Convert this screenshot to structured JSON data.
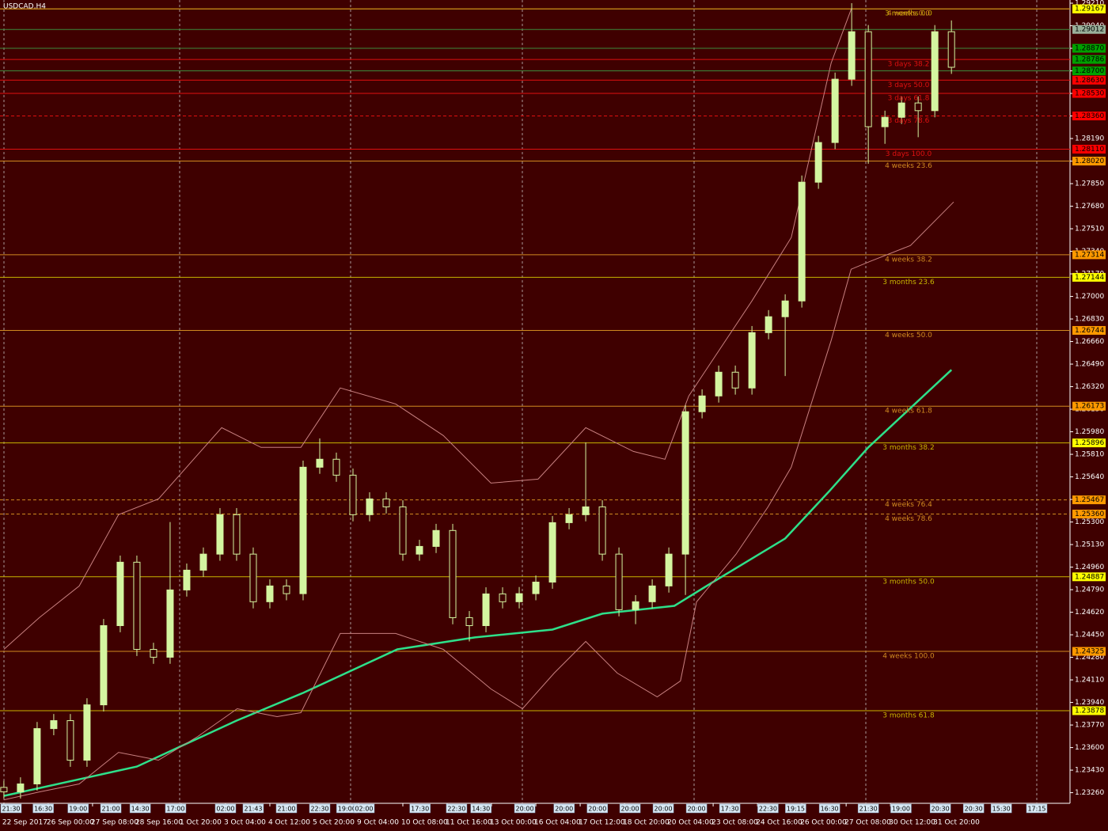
{
  "chart_data": {
    "type": "candlestick",
    "title": "USDCAD,H4",
    "background": "#3f0000",
    "bull_color": "#d4f5a0",
    "bear_color": "#3f0000",
    "x": [
      0,
      3,
      6,
      9,
      12,
      15,
      18,
      21,
      24,
      27,
      30,
      33,
      36,
      39,
      42,
      45,
      48,
      51,
      54,
      57,
      60,
      63,
      66,
      69,
      72,
      75,
      78,
      81,
      84,
      87,
      90,
      93,
      96,
      99,
      102,
      105,
      108,
      111,
      114,
      117,
      120,
      123,
      126,
      129,
      132,
      135,
      138,
      141,
      144,
      147,
      150,
      153,
      156,
      159,
      162,
      165,
      168,
      171
    ],
    "open": [
      1.233,
      1.23266,
      1.23326,
      1.23743,
      1.23803,
      1.23505,
      1.23922,
      1.24519,
      1.24997,
      1.2434,
      1.24281,
      1.24788,
      1.24937,
      1.25058,
      1.25355,
      1.25058,
      1.24699,
      1.24818,
      1.2476,
      1.25713,
      1.25773,
      1.25653,
      1.25355,
      1.25474,
      1.25414,
      1.25058,
      1.25116,
      1.25236,
      1.24579,
      1.24519,
      1.24758,
      1.24699,
      1.2476,
      1.24847,
      1.25295,
      1.25355,
      1.25414,
      1.25058,
      1.24639,
      1.24699,
      1.24818,
      1.25058,
      1.26131,
      1.2625,
      1.26429,
      1.2631,
      1.26727,
      1.26847,
      1.26966,
      1.27861,
      1.2816,
      1.28637,
      1.28995,
      1.28279,
      1.2835,
      1.28458,
      1.284,
      1.28995
    ],
    "high": [
      1.2335,
      1.23376,
      1.23793,
      1.23853,
      1.23853,
      1.23972,
      1.24569,
      1.25047,
      1.25047,
      1.2439,
      1.253,
      1.24987,
      1.25108,
      1.25405,
      1.25405,
      1.25108,
      1.24868,
      1.24868,
      1.25763,
      1.2593,
      1.25823,
      1.25703,
      1.25524,
      1.25524,
      1.25464,
      1.25166,
      1.25286,
      1.25286,
      1.24629,
      1.24808,
      1.24808,
      1.2481,
      1.24897,
      1.25345,
      1.25405,
      1.259,
      1.25464,
      1.25108,
      1.24749,
      1.24868,
      1.25108,
      1.26181,
      1.263,
      1.26479,
      1.26479,
      1.26777,
      1.26897,
      1.27016,
      1.27911,
      1.2821,
      1.28687,
      1.2921,
      1.29045,
      1.284,
      1.28508,
      1.28508,
      1.29045,
      1.2908
    ],
    "low": [
      1.23216,
      1.23216,
      1.23276,
      1.23693,
      1.23455,
      1.23455,
      1.23872,
      1.24469,
      1.2429,
      1.24231,
      1.24231,
      1.24738,
      1.24887,
      1.25008,
      1.25008,
      1.24649,
      1.24649,
      1.2471,
      1.2471,
      1.25663,
      1.25603,
      1.25305,
      1.25305,
      1.25364,
      1.25008,
      1.25008,
      1.25066,
      1.24529,
      1.244,
      1.24469,
      1.24649,
      1.24649,
      1.2471,
      1.24797,
      1.25245,
      1.25305,
      1.25008,
      1.24589,
      1.2453,
      1.24649,
      1.24768,
      1.2475,
      1.26081,
      1.262,
      1.2626,
      1.2626,
      1.26677,
      1.264,
      1.26916,
      1.27811,
      1.2811,
      1.28587,
      1.28,
      1.2815,
      1.283,
      1.282,
      1.2835,
      1.28677
    ],
    "close": [
      1.23266,
      1.23326,
      1.23743,
      1.23803,
      1.23505,
      1.23922,
      1.24519,
      1.24997,
      1.2434,
      1.24281,
      1.24788,
      1.24937,
      1.25058,
      1.25355,
      1.25058,
      1.24699,
      1.24818,
      1.2476,
      1.25713,
      1.25773,
      1.25653,
      1.25355,
      1.25474,
      1.25414,
      1.25058,
      1.25116,
      1.25236,
      1.24579,
      1.24519,
      1.24758,
      1.24699,
      1.2476,
      1.24847,
      1.25295,
      1.25355,
      1.25414,
      1.25058,
      1.24639,
      1.24699,
      1.24818,
      1.25058,
      1.26131,
      1.2625,
      1.26429,
      1.2631,
      1.26727,
      1.26847,
      1.26966,
      1.27861,
      1.2816,
      1.28637,
      1.28995,
      1.28279,
      1.2835,
      1.28458,
      1.284,
      1.28995,
      1.28727
    ],
    "xlim": [
      -0.7,
      192.4
    ],
    "ylim": [
      1.2318,
      1.29234
    ],
    "xticks": [
      {
        "value": 0,
        "label": "22 Sep 2017"
      },
      {
        "value": 8,
        "label": "26 Sep 00:00"
      },
      {
        "value": 16,
        "label": "27 Sep 08:00"
      },
      {
        "value": 24,
        "label": "28 Sep 16:00"
      },
      {
        "value": 32,
        "label": "1 Oct 20:00"
      },
      {
        "value": 40,
        "label": "3 Oct 04:00"
      },
      {
        "value": 48,
        "label": "4 Oct 12:00"
      },
      {
        "value": 56,
        "label": "5 Oct 20:00"
      },
      {
        "value": 64,
        "label": "9 Oct 04:00"
      },
      {
        "value": 72,
        "label": "10 Oct 08:00"
      },
      {
        "value": 80,
        "label": "11 Oct 16:00"
      },
      {
        "value": 88,
        "label": "13 Oct 00:00"
      },
      {
        "value": 96,
        "label": "16 Oct 04:00"
      },
      {
        "value": 104,
        "label": "17 Oct 12:00"
      },
      {
        "value": 112,
        "label": "18 Oct 20:00"
      },
      {
        "value": 120,
        "label": "20 Oct 04:00"
      },
      {
        "value": 128,
        "label": "23 Oct 08:00"
      },
      {
        "value": 136,
        "label": "24 Oct 16:00"
      },
      {
        "value": 144,
        "label": "26 Oct 00:00"
      },
      {
        "value": 152,
        "label": "27 Oct 08:00"
      },
      {
        "value": 160,
        "label": "30 Oct 12:00"
      },
      {
        "value": 168,
        "label": "31 Oct 20:00"
      }
    ],
    "yticks": [
      {
        "value": 1.2326,
        "label": "1.23260"
      },
      {
        "value": 1.2343,
        "label": "1.23430"
      },
      {
        "value": 1.236,
        "label": "1.23600"
      },
      {
        "value": 1.2377,
        "label": "1.23770"
      },
      {
        "value": 1.2394,
        "label": "1.23940"
      },
      {
        "value": 1.2411,
        "label": "1.24110"
      },
      {
        "value": 1.2428,
        "label": "1.24280"
      },
      {
        "value": 1.2445,
        "label": "1.24450"
      },
      {
        "value": 1.2462,
        "label": "1.24620"
      },
      {
        "value": 1.2479,
        "label": "1.24790"
      },
      {
        "value": 1.2496,
        "label": "1.24960"
      },
      {
        "value": 1.2513,
        "label": "1.25130"
      },
      {
        "value": 1.253,
        "label": "1.25300"
      },
      {
        "value": 1.2547,
        "label": "1.25470"
      },
      {
        "value": 1.2564,
        "label": "1.25640"
      },
      {
        "value": 1.2581,
        "label": "1.25810"
      },
      {
        "value": 1.2598,
        "label": "1.25980"
      },
      {
        "value": 1.2615,
        "label": "1.26150"
      },
      {
        "value": 1.2632,
        "label": "1.26320"
      },
      {
        "value": 1.2649,
        "label": "1.26490"
      },
      {
        "value": 1.2666,
        "label": "1.26660"
      },
      {
        "value": 1.2683,
        "label": "1.26830"
      },
      {
        "value": 1.27,
        "label": "1.27000"
      },
      {
        "value": 1.2717,
        "label": "1.27170"
      },
      {
        "value": 1.2734,
        "label": "1.27340"
      },
      {
        "value": 1.2751,
        "label": "1.27510"
      },
      {
        "value": 1.2768,
        "label": "1.27680"
      },
      {
        "value": 1.2785,
        "label": "1.27850"
      },
      {
        "value": 1.2802,
        "label": "1.28020"
      },
      {
        "value": 1.2819,
        "label": "1.28190"
      },
      {
        "value": 1.2836,
        "label": "1.28360"
      },
      {
        "value": 1.2853,
        "label": "1.28530"
      },
      {
        "value": 1.287,
        "label": "1.28700"
      },
      {
        "value": 1.2887,
        "label": "1.28870"
      },
      {
        "value": 1.2904,
        "label": "1.29040"
      },
      {
        "value": 1.2921,
        "label": "1.29210"
      }
    ],
    "lines": [
      {
        "color": "#2ee08a",
        "width": 2.5,
        "x": [
          0,
          24,
          42,
          54,
          71,
          85,
          99,
          108,
          121,
          128,
          141,
          149,
          156,
          171
        ],
        "values": [
          1.23236,
          1.23457,
          1.23803,
          1.24012,
          1.2434,
          1.2443,
          1.24489,
          1.24609,
          1.24668,
          1.24848,
          1.25176,
          1.25534,
          1.25862,
          1.26447
        ]
      },
      {
        "color": "#c88080",
        "width": 1,
        "x": [
          0,
          6.4,
          13.6,
          20.7,
          27.9,
          39.3,
          46.4,
          53.6,
          60.7,
          70.7,
          79.3,
          87.9,
          96.4,
          105,
          113.6,
          119.3,
          123.6,
          135,
          142.1,
          149.3,
          153
        ],
        "values": [
          1.2434,
          1.24579,
          1.24818,
          1.25355,
          1.25474,
          1.26011,
          1.25862,
          1.25862,
          1.2631,
          1.2619,
          1.25952,
          1.25593,
          1.25623,
          1.26011,
          1.25832,
          1.25773,
          1.2625,
          1.26966,
          1.27444,
          1.28759,
          1.29174
        ]
      },
      {
        "color": "#c88080",
        "width": 1,
        "x": [
          0,
          6.4,
          13.6,
          20.7,
          27.9,
          35,
          42.1,
          49.3,
          53.6,
          60.7,
          70.7,
          79.3,
          87.9,
          93.6,
          99.3,
          105,
          110.7,
          117.9,
          122.1,
          125,
          132.1,
          137.9,
          142.1,
          149.3,
          152.9,
          156.4,
          163.6,
          171.4
        ],
        "values": [
          1.23206,
          1.23266,
          1.23326,
          1.23564,
          1.23505,
          1.23684,
          1.23893,
          1.23833,
          1.23863,
          1.2446,
          1.2446,
          1.2434,
          1.24042,
          1.23893,
          1.24161,
          1.244,
          1.24161,
          1.23982,
          1.24102,
          1.24698,
          1.25056,
          1.25414,
          1.25713,
          1.26668,
          1.27205,
          1.27265,
          1.27384,
          1.27712
        ]
      }
    ],
    "levels": [
      {
        "name": "3 months 0.0",
        "price": {
          "value": 1.29167,
          "label": "1.29167"
        },
        "color": "#c8b400",
        "box": "#ffff00"
      },
      {
        "name": "4 weeks 0.0",
        "price": {
          "value": 1.29167,
          "label": "1.29167"
        },
        "color": "#d08a20",
        "box": "#ffff00"
      },
      {
        "name": "3 days 38.2",
        "price": {
          "value": 1.28786,
          "label": "1.28786"
        },
        "color": "#e01010",
        "box": "#00a000"
      },
      {
        "name": "3 days 50.0",
        "price": {
          "value": 1.2863,
          "label": "1.28630"
        },
        "color": "#e01010",
        "box": "#ff0000"
      },
      {
        "name": "3 days 61.8",
        "price": {
          "value": 1.2853,
          "label": "1.28530"
        },
        "color": "#e01010",
        "box": "#ff0000"
      },
      {
        "name": "3 days 78.6",
        "price": {
          "value": 1.2836,
          "label": "1.28360"
        },
        "color": "#e01010",
        "box": "#ff0000",
        "dashed": true
      },
      {
        "name": "3 days 100.0",
        "price": {
          "value": 1.2811,
          "label": "1.28110"
        },
        "color": "#e01010",
        "box": "#ff0000"
      },
      {
        "name": "4 weeks 23.6",
        "price": {
          "value": 1.2802,
          "label": "1.28020"
        },
        "color": "#d08a20",
        "box": "#ff9900"
      },
      {
        "name": "4 weeks 38.2",
        "price": {
          "value": 1.27314,
          "label": "1.27314"
        },
        "color": "#d08a20",
        "box": "#ff9900"
      },
      {
        "name": "3 months 23.6",
        "price": {
          "value": 1.27144,
          "label": "1.27144"
        },
        "color": "#c8b400",
        "box": "#ffff00"
      },
      {
        "name": "4 weeks 50.0",
        "price": {
          "value": 1.26744,
          "label": "1.26744"
        },
        "color": "#d08a20",
        "box": "#ff9900"
      },
      {
        "name": "4 weeks 61.8",
        "price": {
          "value": 1.26173,
          "label": "1.26173"
        },
        "color": "#d08a20",
        "box": "#ff9900"
      },
      {
        "name": "3 months 38.2",
        "price": {
          "value": 1.25896,
          "label": "1.25896"
        },
        "color": "#c8b400",
        "box": "#ffff00"
      },
      {
        "name": "4 weeks 76.4",
        "price": {
          "value": 1.25467,
          "label": "1.25467"
        },
        "color": "#d08a20",
        "box": "#ff9900",
        "dashed": true
      },
      {
        "name": "4 weeks 78.6",
        "price": {
          "value": 1.2536,
          "label": "1.25360"
        },
        "color": "#d08a20",
        "box": "#ff9900",
        "dashed": true
      },
      {
        "name": "3 months 50.0",
        "price": {
          "value": 1.24887,
          "label": "1.24887"
        },
        "color": "#c8b400",
        "box": "#ffff00"
      },
      {
        "name": "4 weeks 100.0",
        "price": {
          "value": 1.24325,
          "label": "1.24325"
        },
        "color": "#d08a20",
        "box": "#ff9900"
      },
      {
        "name": "3 months 61.8",
        "price": {
          "value": 1.23878,
          "label": "1.23878"
        },
        "color": "#c8b400",
        "box": "#ffff00"
      }
    ],
    "price_markers": [
      {
        "price": {
          "value": 1.29012,
          "label": "1.29012"
        },
        "color": "#3c8a3c",
        "box": "#9ab09a"
      },
      {
        "price": {
          "value": 1.2887,
          "label": "1.28870"
        },
        "color": "#3c8a3c",
        "box": "#00a000"
      },
      {
        "price": {
          "value": 1.287,
          "label": "1.28700"
        },
        "color": "#3c8a3c",
        "box": "#00a000"
      }
    ],
    "time_markers": [
      {
        "x": 1.3,
        "label": "21:30"
      },
      {
        "x": 7.1,
        "label": "16:30"
      },
      {
        "x": 13.4,
        "label": "19:00"
      },
      {
        "x": 19.3,
        "label": "21:00"
      },
      {
        "x": 24.6,
        "label": "14:30"
      },
      {
        "x": 31,
        "label": "17:00"
      },
      {
        "x": 40,
        "label": "02:00"
      },
      {
        "x": 45,
        "label": "21:43"
      },
      {
        "x": 51,
        "label": "21:00"
      },
      {
        "x": 57,
        "label": "22:30"
      },
      {
        "x": 61.9,
        "label": "19:00"
      },
      {
        "x": 65,
        "label": "02:00"
      },
      {
        "x": 75.1,
        "label": "17:30"
      },
      {
        "x": 81.7,
        "label": "22:30"
      },
      {
        "x": 86.1,
        "label": "14:30"
      },
      {
        "x": 94,
        "label": "20:00"
      },
      {
        "x": 101.1,
        "label": "20:00"
      },
      {
        "x": 107.1,
        "label": "20:00"
      },
      {
        "x": 113,
        "label": "20:00"
      },
      {
        "x": 119,
        "label": "20:00"
      },
      {
        "x": 125,
        "label": "20:00"
      },
      {
        "x": 131,
        "label": "17:30"
      },
      {
        "x": 137.9,
        "label": "22:30"
      },
      {
        "x": 142.9,
        "label": "19:15"
      },
      {
        "x": 149,
        "label": "16:30"
      },
      {
        "x": 156,
        "label": "21:30"
      },
      {
        "x": 161.9,
        "label": "19:00"
      },
      {
        "x": 169,
        "label": "20:30"
      },
      {
        "x": 175,
        "label": "20:30"
      },
      {
        "x": 180,
        "label": "15:30"
      },
      {
        "x": 186.4,
        "label": "17:15"
      }
    ]
  }
}
